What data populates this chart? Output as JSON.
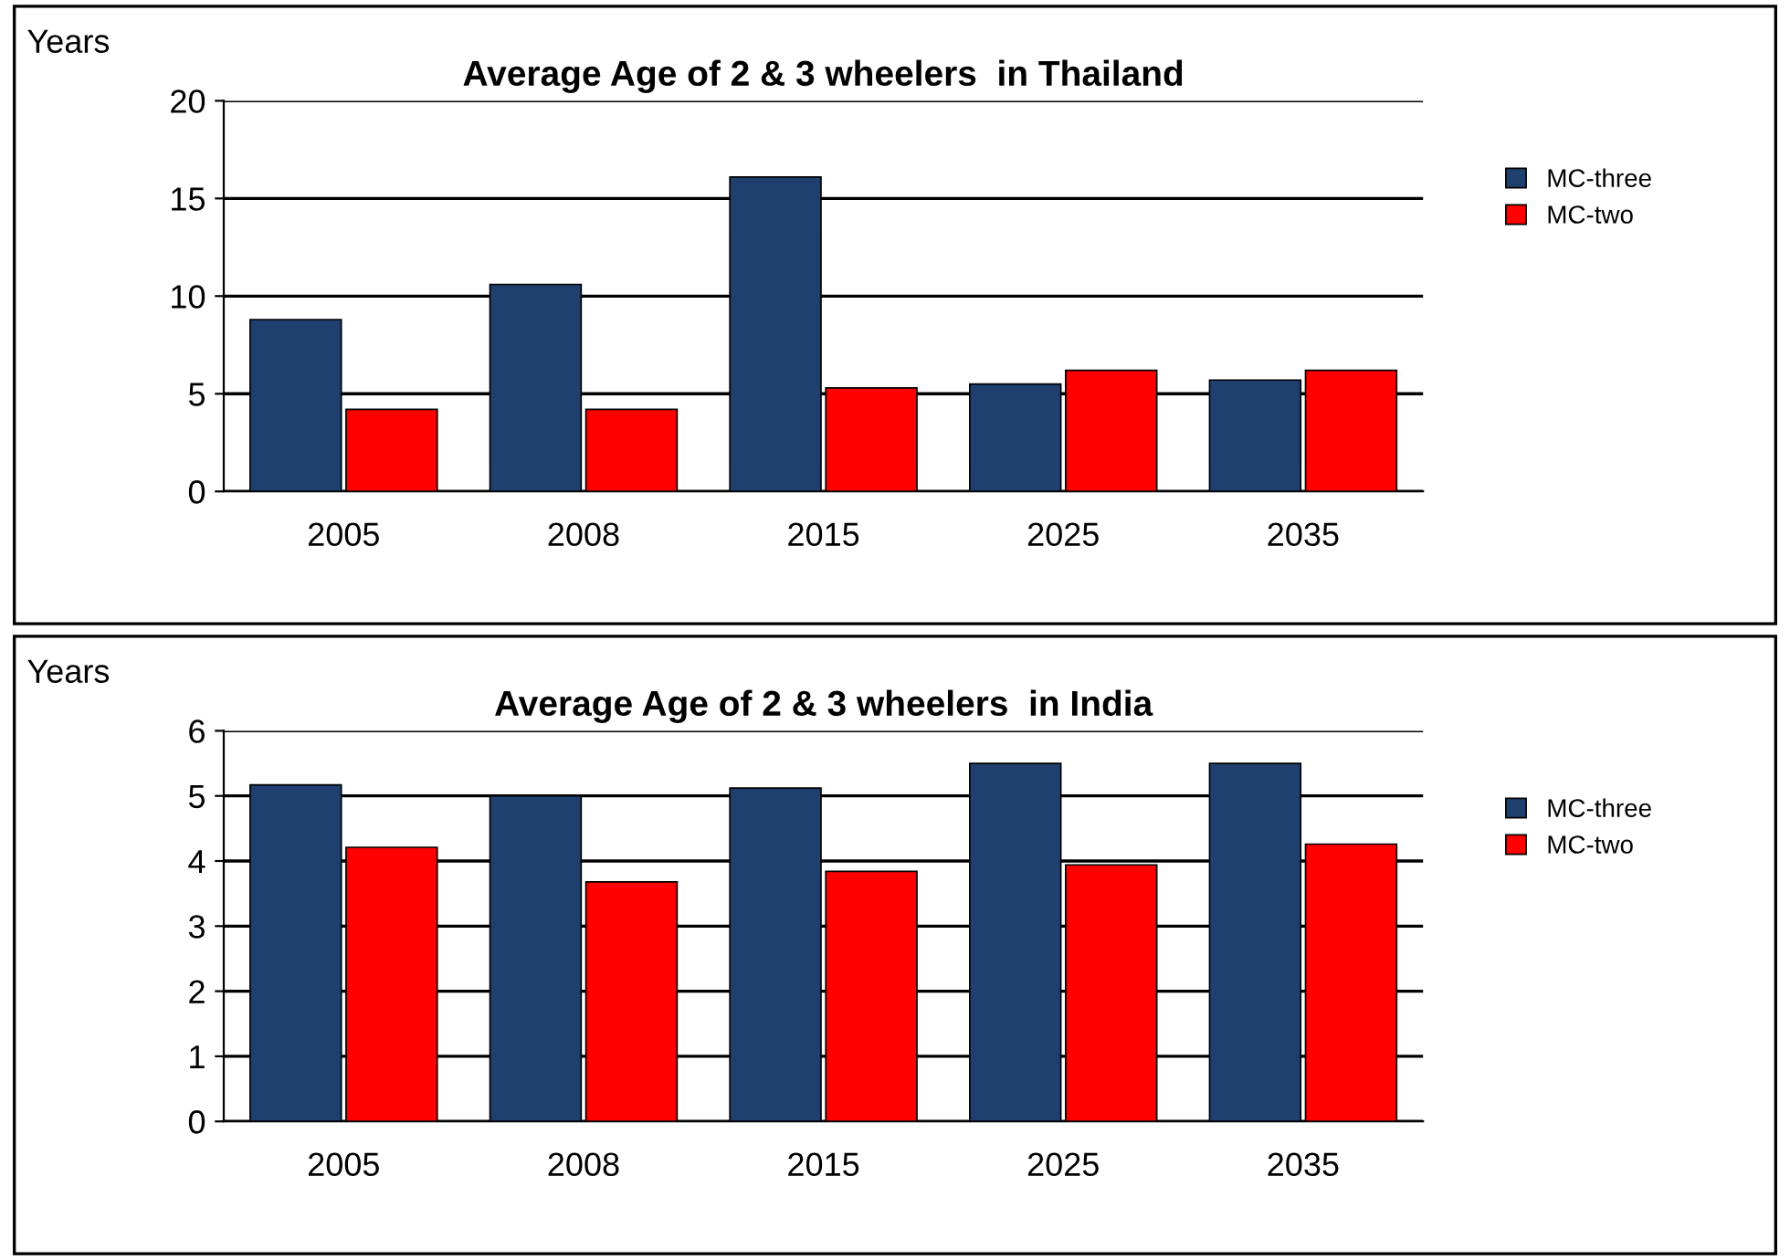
{
  "chart_data": [
    {
      "type": "bar",
      "title": "Average Age of 2 & 3 wheelers  in Thailand",
      "ylabel": "Years",
      "categories": [
        "2005",
        "2008",
        "2015",
        "2025",
        "2035"
      ],
      "series": [
        {
          "name": "MC-three",
          "color": "#1f3f6e",
          "values": [
            8.8,
            10.6,
            16.1,
            5.5,
            5.7
          ]
        },
        {
          "name": "MC-two",
          "color": "#ff0000",
          "values": [
            4.2,
            4.2,
            5.3,
            6.2,
            6.2
          ]
        }
      ],
      "ylim": [
        0,
        20
      ],
      "yticks": [
        0,
        5,
        10,
        15,
        20
      ],
      "grid": "y",
      "legend": "right"
    },
    {
      "type": "bar",
      "title": "Average Age of 2 & 3 wheelers  in India",
      "ylabel": "Years",
      "categories": [
        "2005",
        "2008",
        "2015",
        "2025",
        "2035"
      ],
      "series": [
        {
          "name": "MC-three",
          "color": "#1f3f6e",
          "values": [
            5.17,
            5.0,
            5.12,
            5.5,
            5.5
          ]
        },
        {
          "name": "MC-two",
          "color": "#ff0000",
          "values": [
            4.21,
            3.68,
            3.84,
            3.94,
            4.26
          ]
        }
      ],
      "ylim": [
        0,
        6
      ],
      "yticks": [
        0,
        1,
        2,
        3,
        4,
        5,
        6
      ],
      "grid": "y",
      "legend": "right"
    }
  ]
}
